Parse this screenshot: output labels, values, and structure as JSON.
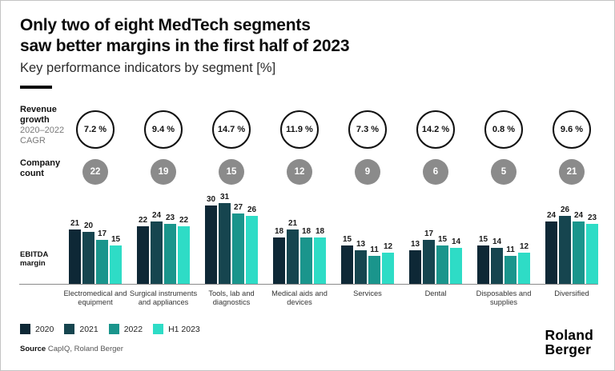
{
  "header": {
    "title": "Only two of eight MedTech segments\nsaw better margins in the first half of 2023",
    "subtitle": "Key performance indicators by segment [%]"
  },
  "labels": {
    "revenue_growth": "Revenue\ngrowth",
    "revenue_growth_sub": "2020–2022\nCAGR",
    "company_count": "Company\ncount",
    "ebitda": "EBITDA\nmargin"
  },
  "chart_data": {
    "type": "bar",
    "title": "Only two of eight MedTech segments saw better margins in the first half of 2023",
    "subtitle": "Key performance indicators by segment [%]",
    "ylabel": "EBITDA margin",
    "unit": "%",
    "grid": false,
    "legend_position": "bottom",
    "ylim": [
      0,
      35
    ],
    "categories": [
      "Electromedical and equipment",
      "Surgical instruments and appliances",
      "Tools, lab and diagnostics",
      "Medical aids and devices",
      "Services",
      "Dental",
      "Disposables and supplies",
      "Diversified"
    ],
    "series": [
      {
        "name": "2020",
        "color": "#0e2836",
        "values": [
          21,
          22,
          30,
          18,
          15,
          13,
          15,
          24
        ]
      },
      {
        "name": "2021",
        "color": "#16454f",
        "values": [
          20,
          24,
          31,
          21,
          13,
          17,
          14,
          26
        ]
      },
      {
        "name": "2022",
        "color": "#1a958c",
        "values": [
          17,
          23,
          27,
          18,
          11,
          15,
          11,
          24
        ]
      },
      {
        "name": "H1 2023",
        "color": "#2edcc6",
        "values": [
          15,
          22,
          26,
          18,
          12,
          14,
          12,
          23
        ]
      }
    ],
    "revenue_growth_cagr": [
      "7.2 %",
      "9.4 %",
      "14.7 %",
      "11.9 %",
      "7.3 %",
      "14.2 %",
      "0.8 %",
      "9.6 %"
    ],
    "company_count": [
      22,
      19,
      15,
      12,
      9,
      6,
      5,
      21
    ]
  },
  "footer": {
    "source_label": "Source",
    "source_text": "CapIQ, Roland Berger",
    "logo": "Roland\nBerger"
  },
  "colors": {
    "accent_dark": "#0e2836",
    "accent_teal": "#1a958c",
    "accent_turquoise": "#2edcc6",
    "badge_gray": "#8b8b8b"
  }
}
